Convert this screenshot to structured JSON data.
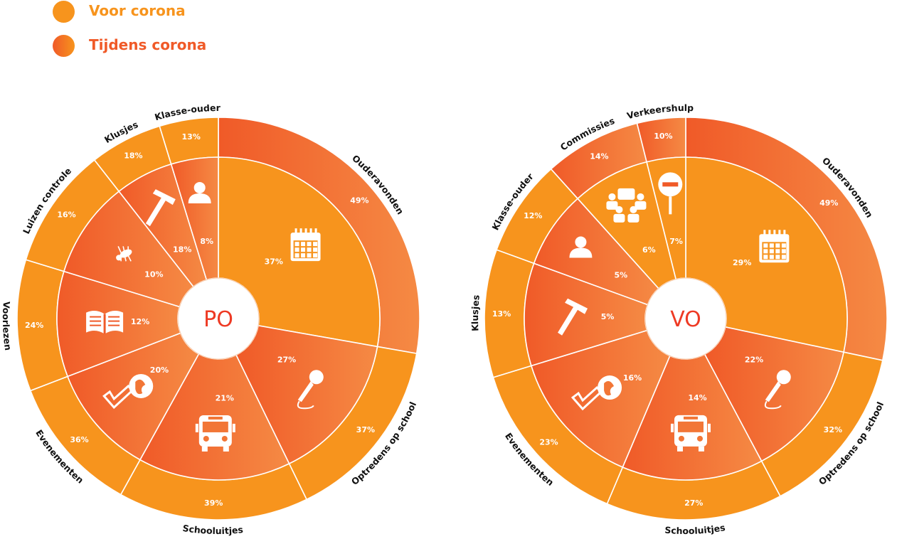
{
  "legend": {
    "voor": "Voor corona",
    "tijdens": "Tijdens corona",
    "voor_color": "#f7941d",
    "tijdens_color": "#f05a28"
  },
  "chart_data": [
    {
      "type": "pie",
      "title": "PO",
      "series": [
        {
          "name": "Voor corona",
          "ring": "outer"
        },
        {
          "name": "Tijdens corona",
          "ring": "inner"
        }
      ],
      "categories": [
        {
          "label": "Ouderavonden",
          "outer": "49%",
          "inner": "37%",
          "icon": "calendar-icon",
          "outer_value": 49,
          "inner_value": 37
        },
        {
          "label": "Optredens op school",
          "outer": "37%",
          "inner": "27%",
          "icon": "microphone-icon",
          "outer_value": 37,
          "inner_value": 27
        },
        {
          "label": "Schooluitjes",
          "outer": "39%",
          "inner": "21%",
          "icon": "bus-icon",
          "outer_value": 39,
          "inner_value": 21
        },
        {
          "label": "Evenementen",
          "outer": "36%",
          "inner": "20%",
          "icon": "event-check-icon",
          "outer_value": 36,
          "inner_value": 20
        },
        {
          "label": "Voorlezen",
          "outer": "24%",
          "inner": "12%",
          "icon": "book-icon",
          "outer_value": 24,
          "inner_value": 12
        },
        {
          "label": "Luizen controle",
          "outer": "16%",
          "inner": "10%",
          "icon": "louse-icon",
          "outer_value": 16,
          "inner_value": 10
        },
        {
          "label": "Klusjes",
          "outer": "18%",
          "inner": "18%",
          "icon": "hammer-icon",
          "outer_value": 18,
          "inner_value": 18
        },
        {
          "label": "Klasse-ouder",
          "outer": "13%",
          "inner": "8%",
          "icon": "person-icon",
          "outer_value": 13,
          "inner_value": 8
        }
      ]
    },
    {
      "type": "pie",
      "title": "VO",
      "series": [
        {
          "name": "Voor corona",
          "ring": "outer"
        },
        {
          "name": "Tijdens corona",
          "ring": "inner"
        }
      ],
      "categories": [
        {
          "label": "Ouderavonden",
          "outer": "49%",
          "inner": "29%",
          "icon": "calendar-icon",
          "outer_value": 49,
          "inner_value": 29
        },
        {
          "label": "Optredens op school",
          "outer": "32%",
          "inner": "22%",
          "icon": "microphone-icon",
          "outer_value": 32,
          "inner_value": 22
        },
        {
          "label": "Schooluitjes",
          "outer": "27%",
          "inner": "14%",
          "icon": "bus-icon",
          "outer_value": 27,
          "inner_value": 14
        },
        {
          "label": "Evenementen",
          "outer": "23%",
          "inner": "16%",
          "icon": "event-check-icon",
          "outer_value": 23,
          "inner_value": 16
        },
        {
          "label": "Klusjes",
          "outer": "13%",
          "inner": "5%",
          "icon": "hammer-icon",
          "outer_value": 13,
          "inner_value": 5
        },
        {
          "label": "Klasse-ouder",
          "outer": "12%",
          "inner": "5%",
          "icon": "person-icon",
          "outer_value": 12,
          "inner_value": 5
        },
        {
          "label": "Commissies",
          "outer": "14%",
          "inner": "6%",
          "icon": "group-icon",
          "outer_value": 14,
          "inner_value": 6
        },
        {
          "label": "Verkeershulp",
          "outer": "10%",
          "inner": "7%",
          "icon": "stop-sign-icon",
          "outer_value": 10,
          "inner_value": 7
        }
      ]
    }
  ]
}
